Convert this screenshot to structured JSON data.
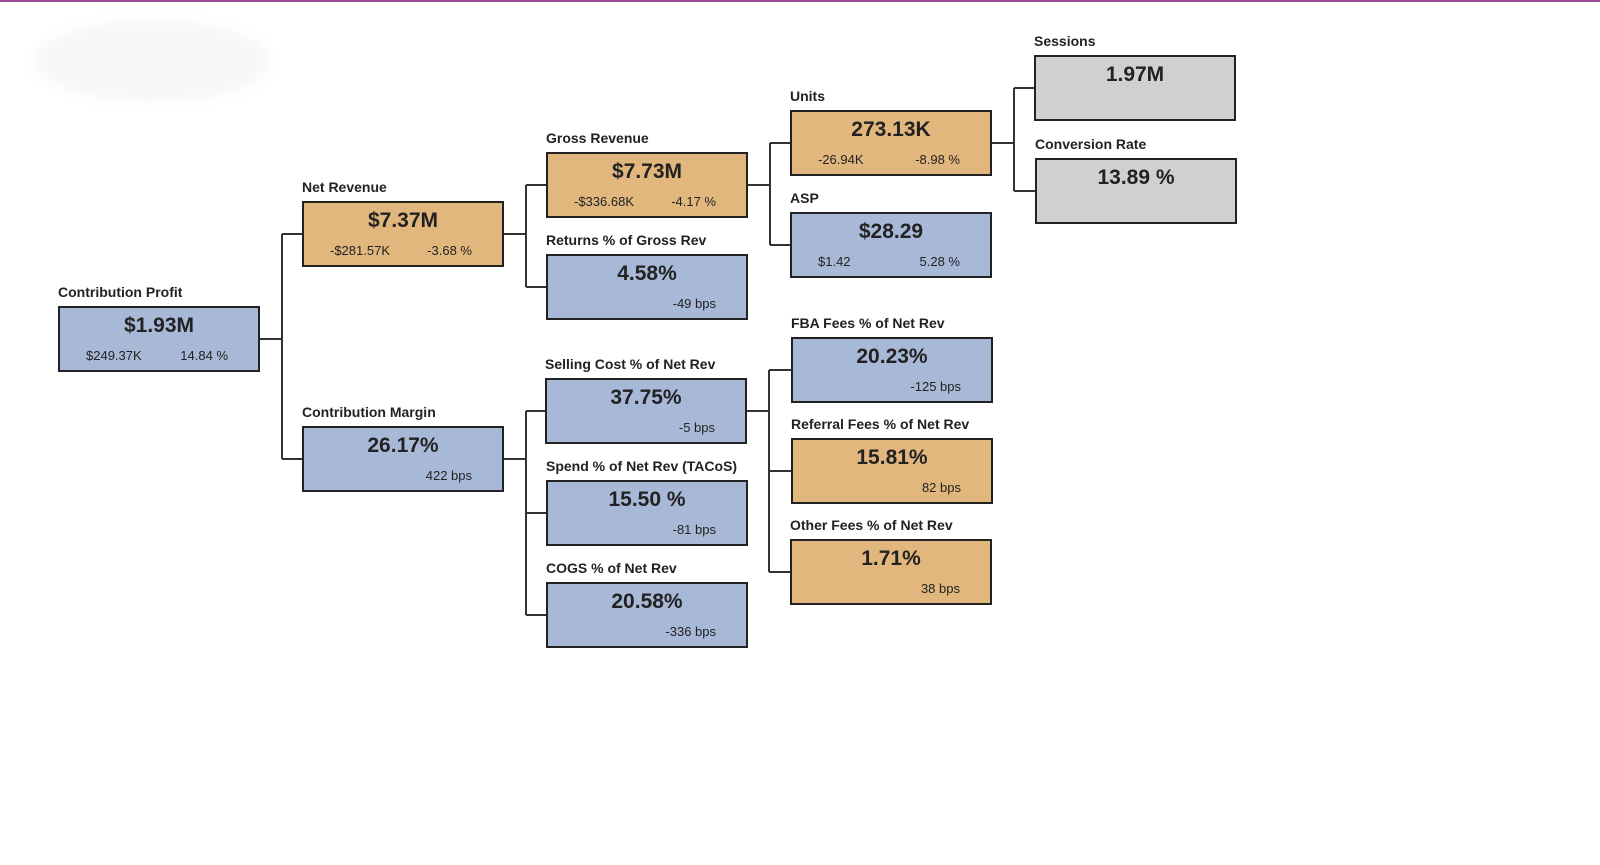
{
  "nodes": [
    {
      "label": "Contribution Profit",
      "value": "$1.93M",
      "details": [
        "$249.37K",
        "14.84 %"
      ],
      "color": "#a7b9d7"
    },
    {
      "label": "Net Revenue",
      "value": "$7.37M",
      "details": [
        "-$281.57K",
        "-3.68 %"
      ],
      "color": "#e2b77e"
    },
    {
      "label": "Contribution Margin",
      "value": "26.17%",
      "details": [
        "422 bps"
      ],
      "color": "#a7b9d7"
    },
    {
      "label": "Gross Revenue",
      "value": "$7.73M",
      "details": [
        "-$336.68K",
        "-4.17 %"
      ],
      "color": "#e2b77e"
    },
    {
      "label": "Returns % of Gross Rev",
      "value": "4.58%",
      "details": [
        "-49 bps"
      ],
      "color": "#a7b9d7"
    },
    {
      "label": "Selling Cost % of Net Rev",
      "value": "37.75%",
      "details": [
        "-5 bps"
      ],
      "color": "#a7b9d7"
    },
    {
      "label": "Spend % of Net Rev (TACoS)",
      "value": "15.50 %",
      "details": [
        "-81 bps"
      ],
      "color": "#a7b9d7"
    },
    {
      "label": "COGS % of Net Rev",
      "value": "20.58%",
      "details": [
        "-336 bps"
      ],
      "color": "#a7b9d7"
    },
    {
      "label": "Units",
      "value": "273.13K",
      "details": [
        "-26.94K",
        "-8.98 %"
      ],
      "color": "#e2b77e"
    },
    {
      "label": "ASP",
      "value": "$28.29",
      "details": [
        "$1.42",
        "5.28 %"
      ],
      "color": "#a7b9d7"
    },
    {
      "label": "FBA Fees % of Net Rev",
      "value": "20.23%",
      "details": [
        "-125 bps"
      ],
      "color": "#a7b9d7"
    },
    {
      "label": "Referral Fees % of Net Rev",
      "value": "15.81%",
      "details": [
        "82 bps"
      ],
      "color": "#e2b77e"
    },
    {
      "label": "Other Fees % of Net Rev",
      "value": "1.71%",
      "details": [
        "38 bps"
      ],
      "color": "#e2b77e"
    },
    {
      "label": "Sessions",
      "value": "1.97M",
      "details": [],
      "color": "#d0d0d0"
    },
    {
      "label": "Conversion Rate",
      "value": "13.89 %",
      "details": [],
      "color": "#d0d0d0"
    }
  ]
}
